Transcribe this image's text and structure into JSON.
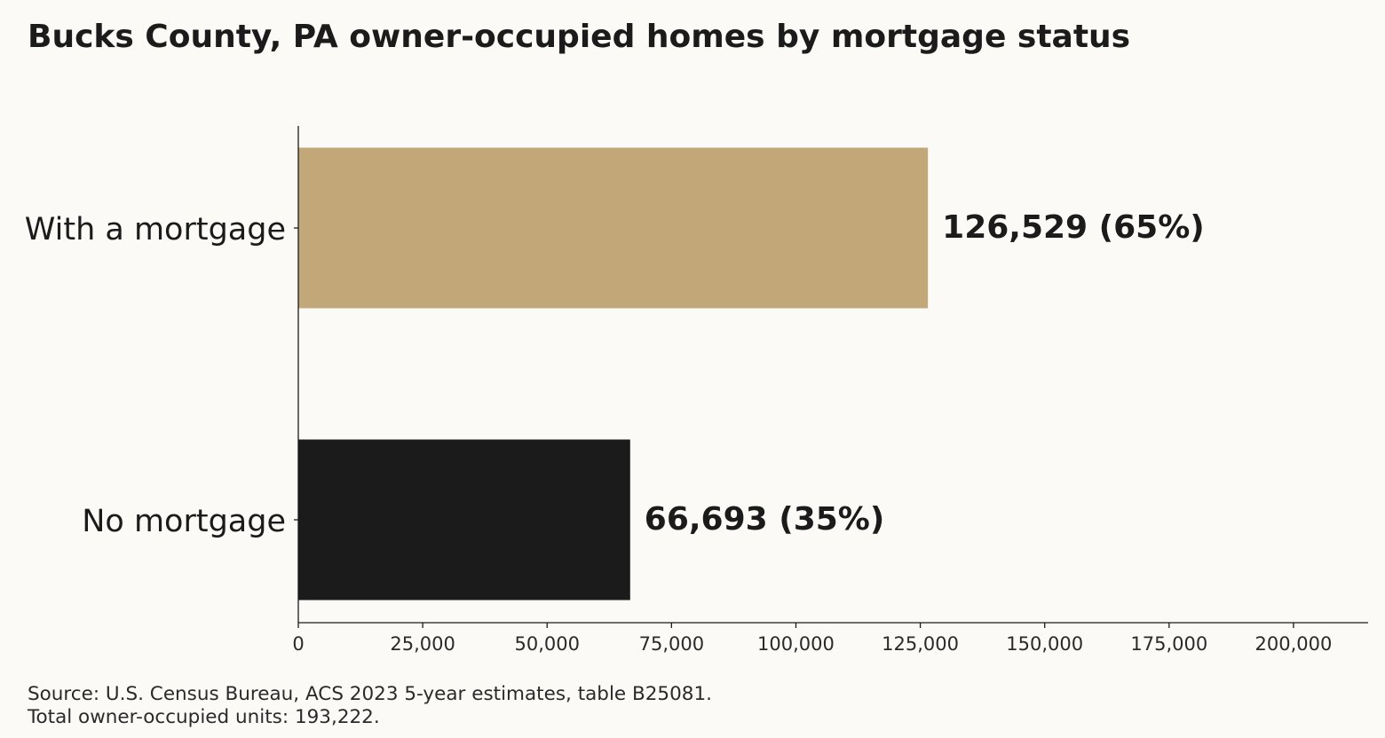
{
  "chart_data": {
    "type": "bar",
    "orientation": "horizontal",
    "title": "Bucks County, PA owner-occupied homes by mortgage status",
    "categories": [
      "With a mortgage",
      "No mortgage"
    ],
    "values": [
      126529,
      66693
    ],
    "value_labels": [
      "126,529  (65%)",
      "66,693  (35%)"
    ],
    "colors": [
      "#c2a779",
      "#1b1b1b"
    ],
    "xlim": [
      0,
      215000
    ],
    "x_ticks": [
      0,
      25000,
      50000,
      75000,
      100000,
      125000,
      150000,
      175000,
      200000
    ],
    "x_tick_labels": [
      "0",
      "25,000",
      "50,000",
      "75,000",
      "100,000",
      "125,000",
      "150,000",
      "175,000",
      "200,000"
    ],
    "xlabel": "",
    "ylabel": "",
    "grid": false,
    "legend": false
  },
  "footer": {
    "source_line": "Source: U.S. Census Bureau, ACS 2023 5-year estimates, table B25081.",
    "total_line": "Total owner-occupied units: 193,222."
  }
}
